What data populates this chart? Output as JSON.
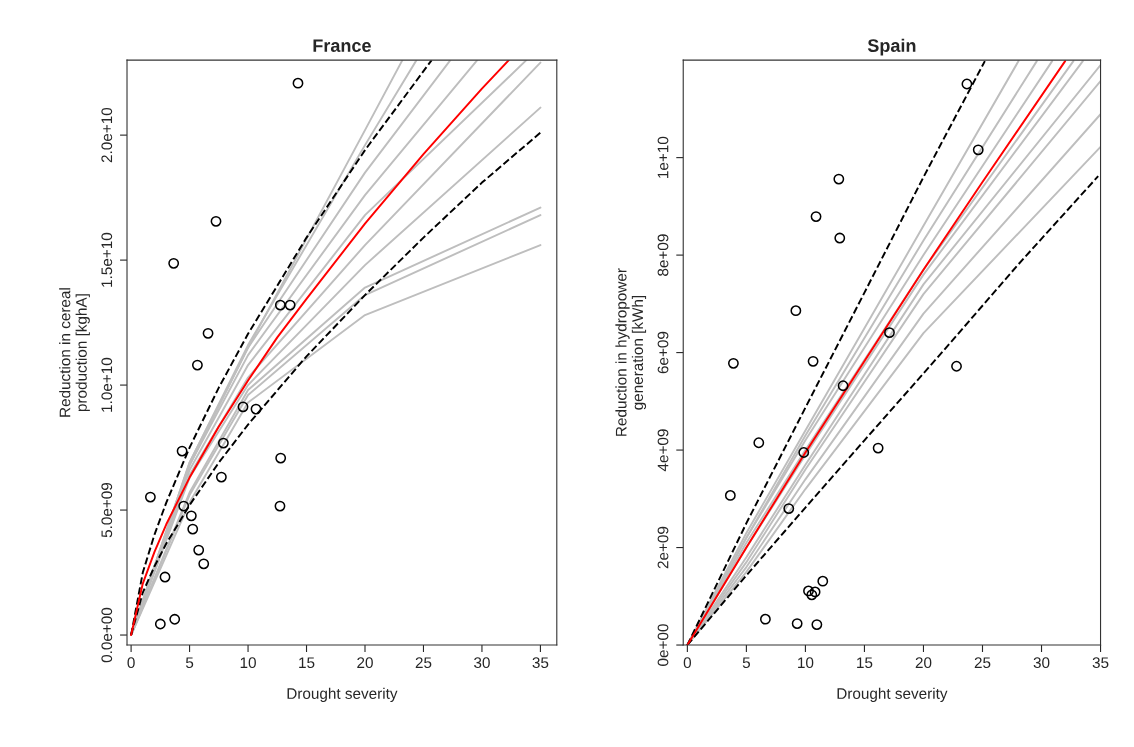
{
  "chart_data": [
    {
      "type": "scatter",
      "title": "France",
      "xlabel": "Drought severity",
      "ylabel": "Reduction in cereal\nproduction [kghA]",
      "xlim": [
        -0.35,
        36.4
      ],
      "ylim": [
        -400000000.0,
        23000000000.0
      ],
      "xticks": [
        0,
        5,
        10,
        15,
        20,
        25,
        30,
        35
      ],
      "yticks": [
        {
          "value": 0,
          "label": "0.0e+00"
        },
        {
          "value": 5000000000.0,
          "label": "5.0e+09"
        },
        {
          "value": 10000000000.0,
          "label": "1.0e+10"
        },
        {
          "value": 15000000000.0,
          "label": "1.5e+10"
        },
        {
          "value": 20000000000.0,
          "label": "2.0e+10"
        }
      ],
      "series": [
        {
          "type": "line",
          "color": "#bebebe",
          "line_style": "solid",
          "x": [
            0,
            5,
            10,
            20,
            35
          ],
          "values": [
            0,
            5300000000.0,
            9300000000.0,
            12800000000.0,
            15600000000.0
          ]
        },
        {
          "type": "line",
          "color": "#bebebe",
          "line_style": "solid",
          "x": [
            0,
            5,
            10,
            20,
            35
          ],
          "values": [
            0,
            5600000000.0,
            9600000000.0,
            13600000000.0,
            16800000000.0
          ]
        },
        {
          "type": "line",
          "color": "#bebebe",
          "line_style": "solid",
          "x": [
            0,
            5,
            10,
            20,
            35
          ],
          "values": [
            0,
            5700000000.0,
            9800000000.0,
            13900000000.0,
            17100000000.0
          ]
        },
        {
          "type": "line",
          "color": "#bebebe",
          "line_style": "solid",
          "x": [
            0,
            5,
            10,
            20,
            35
          ],
          "values": [
            0,
            6300000000.0,
            10000000000.0,
            14800000000.0,
            21100000000.0
          ]
        },
        {
          "type": "line",
          "color": "#bebebe",
          "line_style": "solid",
          "x": [
            0,
            5,
            10,
            20,
            35
          ],
          "values": [
            0,
            6400000000.0,
            10300000000.0,
            15600000000.0,
            22900000000.0
          ]
        },
        {
          "type": "line",
          "color": "#bebebe",
          "line_style": "solid",
          "x": [
            0,
            5,
            10,
            20,
            33.8
          ],
          "values": [
            0,
            6600000000.0,
            10800000000.0,
            16800000000.0,
            23000000000.0
          ]
        },
        {
          "type": "line",
          "color": "#bebebe",
          "line_style": "solid",
          "x": [
            0,
            5,
            10,
            20,
            29.6
          ],
          "values": [
            0,
            6800000000.0,
            11200000000.0,
            17600000000.0,
            23000000000.0
          ]
        },
        {
          "type": "line",
          "color": "#bebebe",
          "line_style": "solid",
          "x": [
            0,
            5,
            10,
            20,
            27.3
          ],
          "values": [
            0,
            6900000000.0,
            11500000000.0,
            18500000000.0,
            23000000000.0
          ]
        },
        {
          "type": "line",
          "color": "#bebebe",
          "line_style": "solid",
          "x": [
            0,
            5,
            10,
            20,
            24.4
          ],
          "values": [
            0,
            6900000000.0,
            11600000000.0,
            19600000000.0,
            23000000000.0
          ]
        },
        {
          "type": "line",
          "color": "#bebebe",
          "line_style": "solid",
          "x": [
            0,
            5,
            10,
            20,
            23.2
          ],
          "values": [
            0,
            6800000000.0,
            11500000000.0,
            20200000000.0,
            23000000000.0
          ]
        },
        {
          "type": "line",
          "color": "#000000",
          "line_style": "dashed",
          "x": [
            0,
            1,
            2,
            3,
            5,
            7.5,
            10,
            15,
            20,
            25.7
          ],
          "values": [
            0,
            2500000000.0,
            4020000000.0,
            5290000000.0,
            7500000000.0,
            9900000000.0,
            12050000000.0,
            15900000000.0,
            19400000000.0,
            23000000000.0
          ]
        },
        {
          "type": "line",
          "color": "#000000",
          "line_style": "dashed",
          "x": [
            0,
            1,
            2,
            3,
            5,
            7.5,
            10,
            15,
            20,
            25,
            30,
            35
          ],
          "values": [
            0,
            1700000000.0,
            2750000000.0,
            3650000000.0,
            5200000000.0,
            6900000000.0,
            8420000000.0,
            11150000000.0,
            13600000000.0,
            15900000000.0,
            18100000000.0,
            20100000000.0
          ]
        },
        {
          "type": "line",
          "color": "#ff0000",
          "line_style": "solid",
          "x": [
            0,
            1,
            2,
            3,
            5,
            7.5,
            10,
            12.5,
            15,
            20,
            25,
            30,
            32.3
          ],
          "values": [
            0,
            2060000000.0,
            3330000000.0,
            4420000000.0,
            6300000000.0,
            8340000000.0,
            10180000000.0,
            11910000000.0,
            13450000000.0,
            16460000000.0,
            19240000000.0,
            21860000000.0,
            23000000000.0
          ]
        },
        {
          "color": "#000000",
          "marker": "circle",
          "x": [
            14.27,
            7.26,
            3.64,
            12.76,
            13.6,
            6.58,
            5.67,
            9.57,
            10.68,
            4.36,
            7.89,
            12.79,
            7.72,
            1.65,
            4.5,
            12.73,
            5.15,
            5.27,
            5.78,
            6.21,
            2.9,
            3.73,
            2.5
          ],
          "values": [
            22080000000.0,
            16550000000.0,
            14870000000.0,
            13200000000.0,
            13200000000.0,
            12070000000.0,
            10800000000.0,
            9130000000.0,
            9040000000.0,
            7360000000.0,
            7680000000.0,
            7080000000.0,
            6320000000.0,
            5520000000.0,
            5160000000.0,
            5160000000.0,
            4770000000.0,
            4240000000.0,
            3400000000.0,
            2850000000.0,
            2320000000.0,
            630000000.0,
            440000000.0
          ]
        }
      ]
    },
    {
      "type": "scatter",
      "title": "Spain",
      "xlabel": "Drought severity",
      "ylabel": "Reduction in hydropower\ngeneration [kWh]",
      "xlim": [
        -0.35,
        35.0
      ],
      "ylim": [
        0,
        12000000000.0
      ],
      "xticks": [
        0,
        5,
        10,
        15,
        20,
        25,
        30,
        35
      ],
      "yticks": [
        {
          "value": 0,
          "label": "0e+00"
        },
        {
          "value": 2000000000.0,
          "label": "2e+09"
        },
        {
          "value": 4000000000.0,
          "label": "4e+09"
        },
        {
          "value": 6000000000.0,
          "label": "6e+09"
        },
        {
          "value": 8000000000.0,
          "label": "8e+09"
        },
        {
          "value": 10000000000.0,
          "label": "1e+10"
        }
      ],
      "series": [
        {
          "type": "line",
          "color": "#bebebe",
          "line_style": "solid",
          "x": [
            0,
            5,
            10,
            20,
            35
          ],
          "values": [
            0,
            1500000000.0,
            3200000000.0,
            6400000000.0,
            10220000000.0
          ]
        },
        {
          "type": "line",
          "color": "#bebebe",
          "line_style": "solid",
          "x": [
            0,
            5,
            10,
            20,
            35
          ],
          "values": [
            0,
            1600000000.0,
            3400000000.0,
            6800000000.0,
            10890000000.0
          ]
        },
        {
          "type": "line",
          "color": "#bebebe",
          "line_style": "solid",
          "x": [
            0,
            5,
            10,
            20,
            35
          ],
          "values": [
            0,
            1700000000.0,
            3600000000.0,
            7200000000.0,
            11570000000.0
          ]
        },
        {
          "type": "line",
          "color": "#bebebe",
          "line_style": "solid",
          "x": [
            0,
            5,
            10,
            20,
            35
          ],
          "values": [
            0,
            1800000000.0,
            3700000000.0,
            7400000000.0,
            11900000000.0
          ]
        },
        {
          "type": "line",
          "color": "#bebebe",
          "line_style": "solid",
          "x": [
            0,
            5,
            10,
            20,
            33.5
          ],
          "values": [
            0,
            2000000000.0,
            3900000000.0,
            7600000000.0,
            11980000000.0
          ]
        },
        {
          "type": "line",
          "color": "#bebebe",
          "line_style": "solid",
          "x": [
            0,
            5,
            10,
            20,
            32.7
          ],
          "values": [
            0,
            2100000000.0,
            4000000000.0,
            7700000000.0,
            11980000000.0
          ]
        },
        {
          "type": "line",
          "color": "#bebebe",
          "line_style": "solid",
          "x": [
            0,
            5,
            10,
            20,
            30.9
          ],
          "values": [
            0,
            2200000000.0,
            4200000000.0,
            8000000000.0,
            11980000000.0
          ]
        },
        {
          "type": "line",
          "color": "#bebebe",
          "line_style": "solid",
          "x": [
            0,
            5,
            10,
            20,
            29.6
          ],
          "values": [
            0,
            2200000000.0,
            4300000000.0,
            8300000000.0,
            11980000000.0
          ]
        },
        {
          "type": "line",
          "color": "#bebebe",
          "line_style": "solid",
          "x": [
            0,
            5,
            10,
            20,
            28.05
          ],
          "values": [
            0,
            2300000000.0,
            4400000000.0,
            8600000000.0,
            11980000000.0
          ]
        },
        {
          "type": "line",
          "color": "#000000",
          "line_style": "dashed",
          "x": [
            0,
            5,
            10,
            15,
            20,
            25.2
          ],
          "values": [
            0,
            2500000000.0,
            4870000000.0,
            7230000000.0,
            9600000000.0,
            11980000000.0
          ]
        },
        {
          "type": "line",
          "color": "#000000",
          "line_style": "dashed",
          "x": [
            0,
            5,
            10,
            15,
            21.7,
            28,
            34.8
          ],
          "values": [
            0,
            1430000000.0,
            2820000000.0,
            4200000000.0,
            6040000000.0,
            7800000000.0,
            9620000000.0
          ]
        },
        {
          "type": "line",
          "color": "#ff0000",
          "line_style": "solid",
          "x": [
            0,
            2.5,
            5,
            10,
            20,
            25,
            32
          ],
          "values": [
            0,
            1000000000.0,
            2000000000.0,
            3950000000.0,
            7700000000.0,
            9500000000.0,
            11980000000.0
          ]
        },
        {
          "color": "#000000",
          "marker": "circle",
          "x": [
            23.68,
            24.64,
            12.83,
            10.9,
            12.91,
            9.19,
            17.12,
            3.9,
            10.65,
            22.8,
            13.19,
            6.05,
            16.16,
            9.86,
            3.64,
            8.59,
            11.47,
            10.26,
            10.82,
            10.54,
            6.61,
            9.3,
            10.97
          ],
          "values": [
            11510000000.0,
            10160000000.0,
            9560000000.0,
            8790000000.0,
            8350000000.0,
            6860000000.0,
            6410000000.0,
            5780000000.0,
            5820000000.0,
            5720000000.0,
            5320000000.0,
            4150000000.0,
            4040000000.0,
            3950000000.0,
            3070000000.0,
            2800000000.0,
            1310000000.0,
            1110000000.0,
            1090000000.0,
            1030000000.0,
            530000000.0,
            440000000.0,
            420000000.0
          ]
        }
      ]
    }
  ]
}
